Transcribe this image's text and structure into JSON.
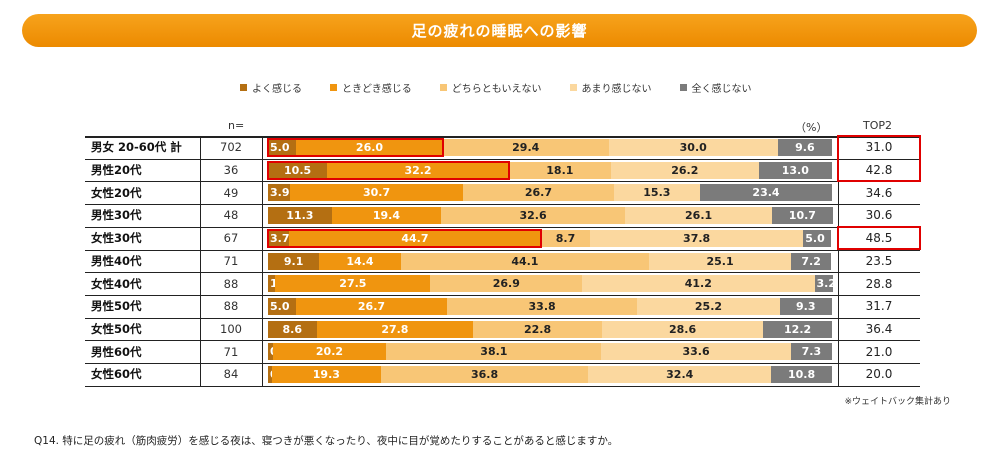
{
  "title": "足の疲れの睡眠への影響",
  "chart_data": {
    "type": "bar",
    "orientation": "horizontal-stacked-100",
    "unit_label": "（%）",
    "n_header": "n=",
    "top2_header": "TOP2",
    "legend_position": "top",
    "series": [
      {
        "name": "よく感じる",
        "color": "#b46f12"
      },
      {
        "name": "ときどき感じる",
        "color": "#f0950f"
      },
      {
        "name": "どちらともいえない",
        "color": "#f8c676"
      },
      {
        "name": "あまり感じない",
        "color": "#fbd89f"
      },
      {
        "name": "全く感じない",
        "color": "#7b7b7b"
      }
    ],
    "rows": [
      {
        "label": "男女 20-60代 計",
        "n": "702",
        "values": [
          5.0,
          26.0,
          29.4,
          30.0,
          9.6
        ],
        "top2": "31.0",
        "highlight": true
      },
      {
        "label": "男性20代",
        "n": "36",
        "values": [
          10.5,
          32.2,
          18.1,
          26.2,
          13.0
        ],
        "top2": "42.8",
        "highlight": true
      },
      {
        "label": "女性20代",
        "n": "49",
        "values": [
          3.9,
          30.7,
          26.7,
          15.3,
          23.4
        ],
        "top2": "34.6",
        "highlight": false
      },
      {
        "label": "男性30代",
        "n": "48",
        "values": [
          11.3,
          19.4,
          32.6,
          26.1,
          10.7
        ],
        "top2": "30.6",
        "highlight": false
      },
      {
        "label": "女性30代",
        "n": "67",
        "values": [
          3.7,
          44.7,
          8.7,
          37.8,
          5.0
        ],
        "top2": "48.5",
        "highlight": true
      },
      {
        "label": "男性40代",
        "n": "71",
        "values": [
          9.1,
          14.4,
          44.1,
          25.1,
          7.2
        ],
        "top2": "23.5",
        "highlight": false
      },
      {
        "label": "女性40代",
        "n": "88",
        "values": [
          1.3,
          27.5,
          26.9,
          41.2,
          3.2
        ],
        "top2": "28.8",
        "highlight": false
      },
      {
        "label": "男性50代",
        "n": "88",
        "values": [
          5.0,
          26.7,
          33.8,
          25.2,
          9.3
        ],
        "top2": "31.7",
        "highlight": false
      },
      {
        "label": "女性50代",
        "n": "100",
        "values": [
          8.6,
          27.8,
          22.8,
          28.6,
          12.2
        ],
        "top2": "36.4",
        "highlight": false
      },
      {
        "label": "男性60代",
        "n": "71",
        "values": [
          0.8,
          20.2,
          38.1,
          33.6,
          7.3
        ],
        "top2": "21.0",
        "highlight": false
      },
      {
        "label": "女性60代",
        "n": "84",
        "values": [
          0.7,
          19.3,
          36.8,
          32.4,
          10.8
        ],
        "top2": "20.0",
        "highlight": false
      }
    ]
  },
  "note": "※ウェイトバック集計あり",
  "question": "Q14. 特に足の疲れ（筋肉疲労）を感じる夜は、寝つきが悪くなったり、夜中に目が覚めたりすることがあると感じますか。",
  "highlight_color": "#e00000"
}
